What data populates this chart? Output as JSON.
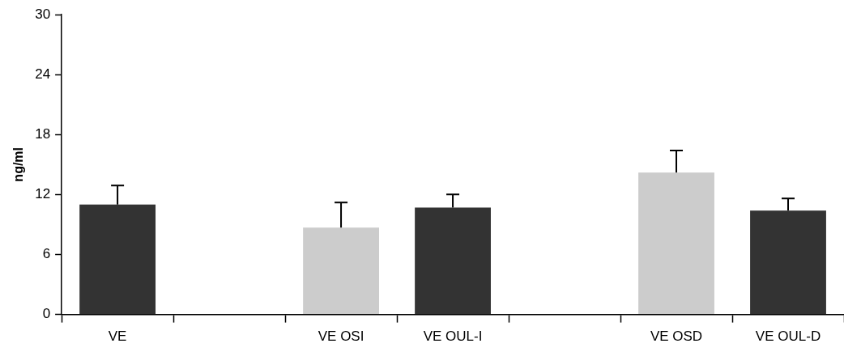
{
  "chart_data": {
    "type": "bar",
    "ylabel": "ng/ml",
    "categories": [
      "VE",
      null,
      "VE OSI",
      "VE OUL-I",
      null,
      "VE OSD",
      "VE OUL-D"
    ],
    "values": [
      11.0,
      null,
      8.7,
      10.7,
      null,
      14.2,
      10.4
    ],
    "colors": [
      "#333333",
      "#ffffff",
      "#cccccc",
      "#333333",
      "#ffffff",
      "#cccccc",
      "#333333"
    ],
    "errors": [
      [
        11.0,
        12.9
      ],
      null,
      [
        8.7,
        11.2
      ],
      [
        10.7,
        12.0
      ],
      null,
      [
        14.2,
        16.4
      ],
      [
        10.4,
        11.6
      ]
    ],
    "ylim": [
      0,
      30
    ],
    "yticks": [
      0,
      6,
      12,
      18,
      24,
      30
    ],
    "grid": false,
    "legend": false
  }
}
